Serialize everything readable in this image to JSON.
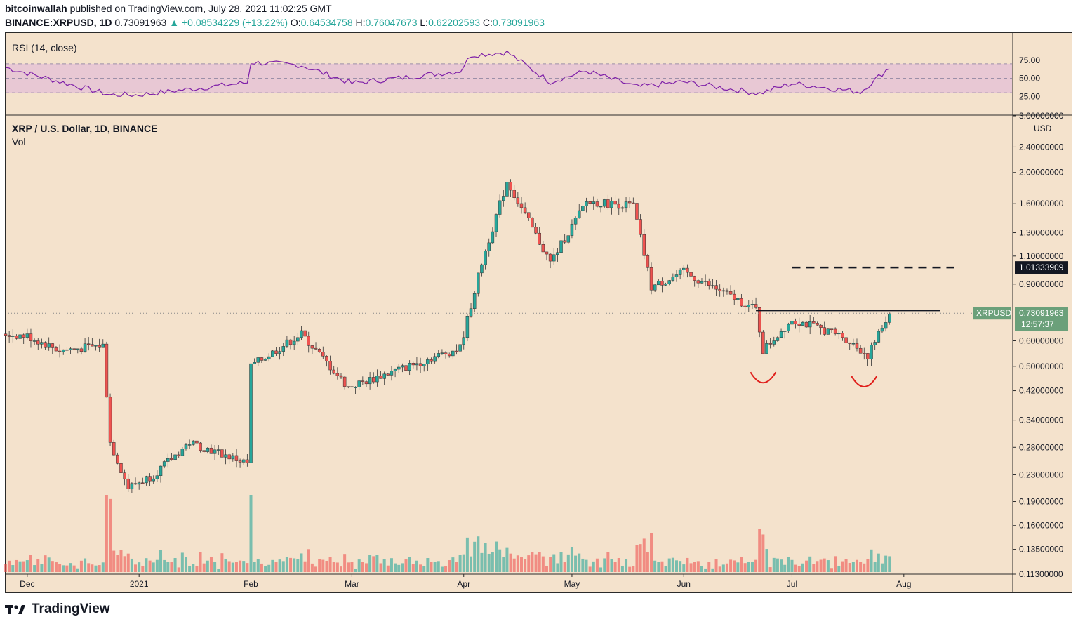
{
  "header": {
    "author": "bitcoinwallah",
    "published": "published on TradingView.com, July 28, 2021 11:02:25 GMT",
    "symbol": "BINANCE:XRPUSD, 1D",
    "last": "0.73091963",
    "change": "▲ +0.08534229 (+13.22%)",
    "o_label": "O:",
    "o_value": "0.64534758",
    "h_label": "H:",
    "h_value": "0.76047673",
    "l_label": "L:",
    "l_value": "0.62202593",
    "c_label": "C:",
    "c_value": "0.73091963"
  },
  "rsi_pane": {
    "label": "RSI (14, close)",
    "ticks": [
      "75.00",
      "50.00",
      "25.00"
    ],
    "levels": [
      70,
      50,
      30
    ]
  },
  "price_pane": {
    "label": "XRP / U.S. Dollar, 1D, BINANCE",
    "vol_label": "Vol",
    "currency": "USD",
    "ticks": [
      "3.00000000",
      "2.40000000",
      "2.00000000",
      "1.60000000",
      "1.30000000",
      "1.10000000",
      "0.90000000",
      "0.60000000",
      "0.50000000",
      "0.42000000",
      "0.34000000",
      "0.28000000",
      "0.23000000",
      "0.19000000",
      "0.16000000",
      "0.13500000",
      "0.11300000"
    ],
    "resistance_label": "1.01333909",
    "price_label_symbol": "XRPUSD",
    "price_label_value": "0.73091963",
    "countdown": "12:57:37"
  },
  "x_axis": [
    "Dec",
    "2021",
    "Feb",
    "Mar",
    "Apr",
    "May",
    "Jun",
    "Jul",
    "Aug"
  ],
  "footer": {
    "brand": "TradingView"
  },
  "colors": {
    "up": "#26a69a",
    "down": "#ef5350",
    "background": "#f4e2cc",
    "rsi_line": "#7e1fa8",
    "rsi_band": "#e8c8d4",
    "pattern": "#e0201c"
  },
  "chart_data": {
    "type": "candlestick",
    "title": "XRP / U.S. Dollar, 1D, BINANCE",
    "scale": "log",
    "ylim": [
      0.113,
      3.0
    ],
    "xlim": [
      "2020-11-25",
      "2021-08-31"
    ],
    "annotations": {
      "resistance": 1.01333909,
      "neckline": 0.745,
      "last_price": 0.73091963,
      "pattern": "double-bottom"
    },
    "monthly_points": [
      {
        "date": "2020-11-25",
        "price": 0.63
      },
      {
        "date": "2020-12-01",
        "price": 0.62
      },
      {
        "date": "2020-12-10",
        "price": 0.56
      },
      {
        "date": "2020-12-22",
        "price": 0.58
      },
      {
        "date": "2020-12-24",
        "price": 0.29
      },
      {
        "date": "2020-12-29",
        "price": 0.21
      },
      {
        "date": "2021-01-05",
        "price": 0.23
      },
      {
        "date": "2021-01-15",
        "price": 0.29
      },
      {
        "date": "2021-01-31",
        "price": 0.25
      },
      {
        "date": "2021-02-01",
        "price": 0.5
      },
      {
        "date": "2021-02-15",
        "price": 0.63
      },
      {
        "date": "2021-02-28",
        "price": 0.43
      },
      {
        "date": "2021-03-31",
        "price": 0.57
      },
      {
        "date": "2021-04-06",
        "price": 1.05
      },
      {
        "date": "2021-04-13",
        "price": 1.88
      },
      {
        "date": "2021-04-25",
        "price": 1.05
      },
      {
        "date": "2021-05-05",
        "price": 1.62
      },
      {
        "date": "2021-05-18",
        "price": 1.58
      },
      {
        "date": "2021-05-23",
        "price": 0.88
      },
      {
        "date": "2021-06-01",
        "price": 0.98
      },
      {
        "date": "2021-06-21",
        "price": 0.75
      },
      {
        "date": "2021-06-23",
        "price": 0.56
      },
      {
        "date": "2021-07-01",
        "price": 0.7
      },
      {
        "date": "2021-07-15",
        "price": 0.62
      },
      {
        "date": "2021-07-22",
        "price": 0.54
      },
      {
        "date": "2021-07-28",
        "price": 0.73
      }
    ],
    "rsi": [
      {
        "date": "2020-11-25",
        "value": 65
      },
      {
        "date": "2020-12-24",
        "value": 27
      },
      {
        "date": "2021-01-01",
        "value": 27
      },
      {
        "date": "2021-01-31",
        "value": 44
      },
      {
        "date": "2021-02-01",
        "value": 72
      },
      {
        "date": "2021-02-15",
        "value": 68
      },
      {
        "date": "2021-03-01",
        "value": 43
      },
      {
        "date": "2021-03-31",
        "value": 60
      },
      {
        "date": "2021-04-03",
        "value": 82
      },
      {
        "date": "2021-04-13",
        "value": 86
      },
      {
        "date": "2021-04-25",
        "value": 45
      },
      {
        "date": "2021-05-05",
        "value": 60
      },
      {
        "date": "2021-05-19",
        "value": 38
      },
      {
        "date": "2021-06-01",
        "value": 45
      },
      {
        "date": "2021-06-22",
        "value": 29
      },
      {
        "date": "2021-07-01",
        "value": 43
      },
      {
        "date": "2021-07-20",
        "value": 31
      },
      {
        "date": "2021-07-28",
        "value": 65
      }
    ]
  }
}
